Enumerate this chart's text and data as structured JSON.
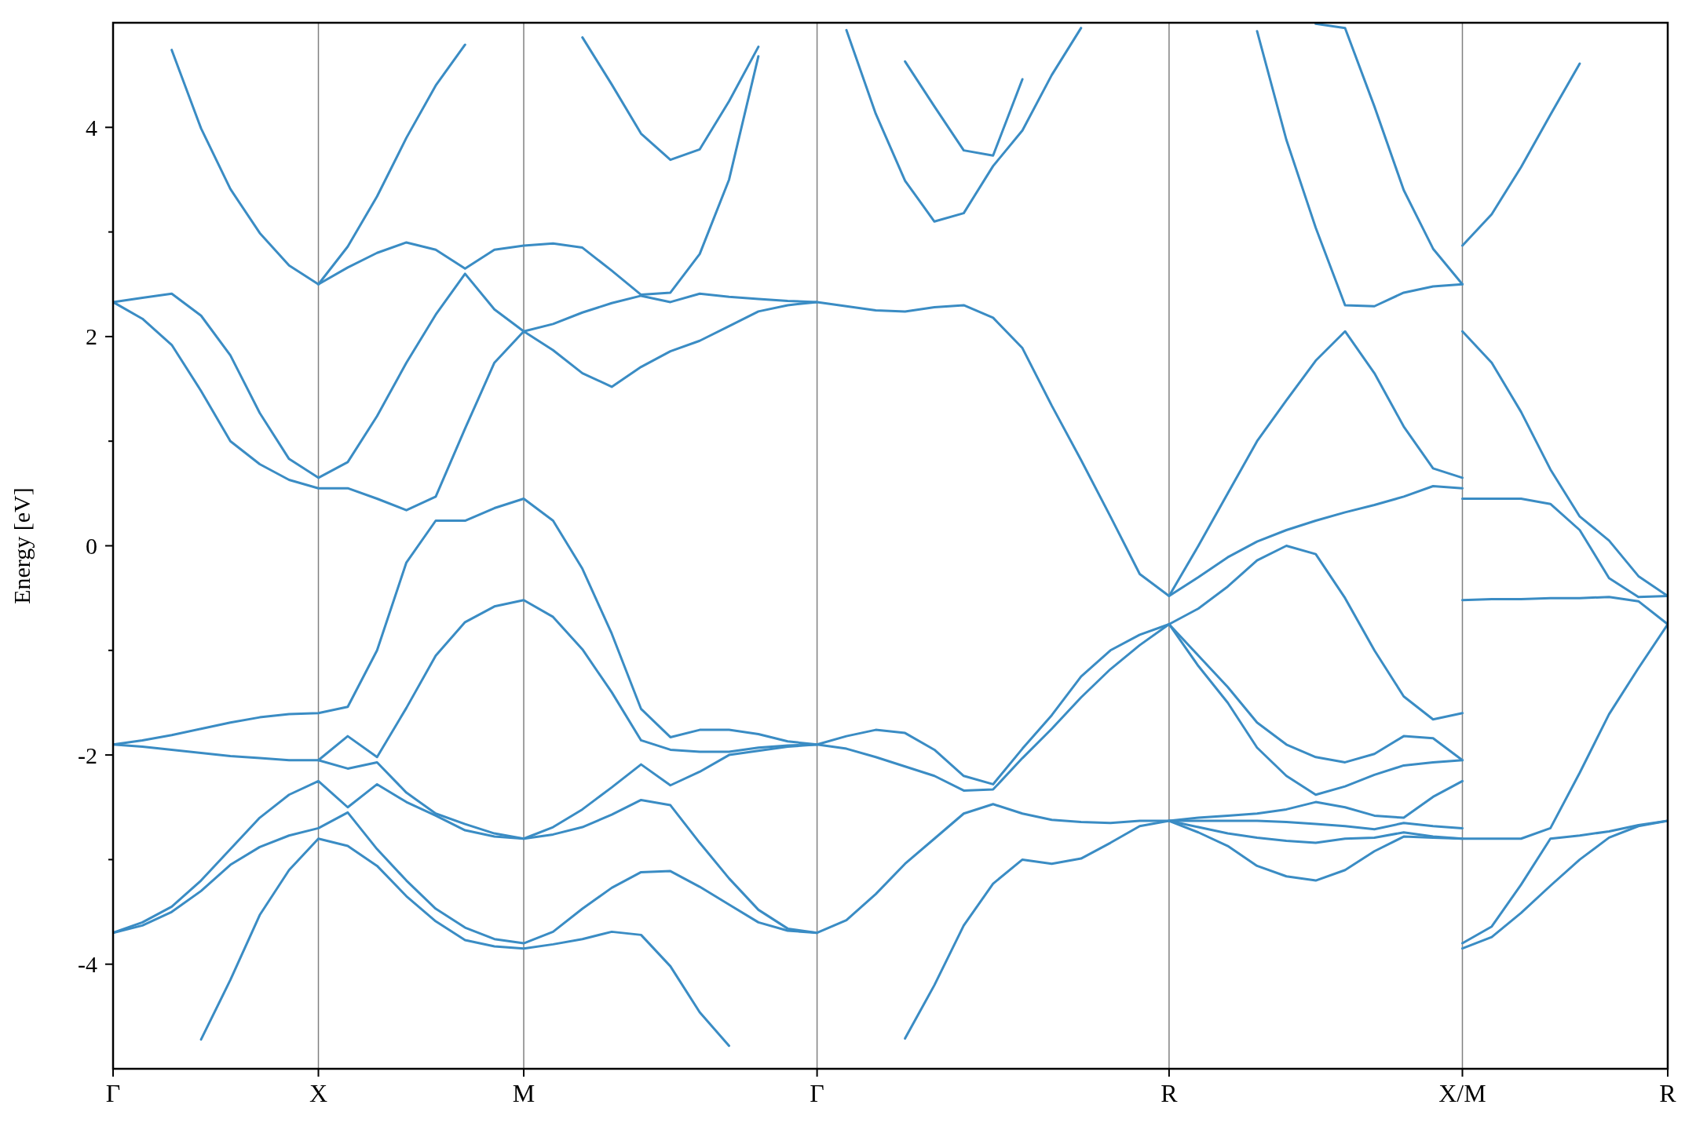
{
  "chart_data": {
    "type": "line",
    "ylabel": "Energy [eV]",
    "ylim": [
      -5,
      5
    ],
    "grid": "x",
    "categories": [
      "Γ",
      null,
      null,
      null,
      null,
      null,
      null,
      "X",
      null,
      null,
      null,
      null,
      null,
      null,
      "M",
      null,
      null,
      null,
      null,
      null,
      null,
      null,
      null,
      null,
      "Γ",
      null,
      null,
      null,
      null,
      null,
      null,
      null,
      null,
      null,
      null,
      null,
      "R",
      null,
      null,
      null,
      null,
      null,
      null,
      null,
      null,
      null,
      "X/M",
      null,
      null,
      null,
      null,
      null,
      null,
      "R"
    ],
    "yticks": [
      -4,
      {
        "value": -3,
        "label": null
      },
      -2,
      {
        "value": -1,
        "label": null
      },
      0,
      {
        "value": 1,
        "label": null
      },
      2,
      {
        "value": 3,
        "label": null
      },
      4
    ],
    "series": [
      {
        "color": "#3a8cc4",
        "values": [
          null,
          null,
          null,
          -4.72,
          -4.15,
          -3.53,
          -3.1,
          -2.8,
          -2.87,
          -3.06,
          -3.35,
          -3.59,
          -3.77,
          -3.83,
          -3.85,
          -3.81,
          -3.76,
          -3.69,
          -3.72,
          -4.02,
          -4.46,
          -4.78,
          null,
          null,
          null,
          null,
          null,
          -4.71,
          -4.2,
          -3.63,
          -3.23,
          -3.0,
          -3.04,
          -2.99,
          -2.84,
          -2.68,
          -2.63,
          -2.74,
          -2.87,
          -3.06,
          -3.16,
          -3.2,
          -3.1,
          -2.92,
          -2.78,
          -2.79,
          -2.8,
          -2.8,
          -2.8,
          -2.7,
          -2.17,
          -1.61,
          -1.17,
          -0.75
        ]
      },
      {
        "color": "#3a8cc4",
        "values": [
          -3.7,
          -3.63,
          -3.5,
          -3.3,
          -3.05,
          -2.88,
          -2.77,
          -2.7,
          -2.55,
          -2.9,
          -3.2,
          -3.47,
          -3.65,
          -3.76,
          -3.8,
          -3.69,
          -3.47,
          -3.27,
          -3.12,
          -3.11,
          -3.26,
          -3.43,
          -3.6,
          -3.68,
          -3.7,
          null,
          null,
          null,
          null,
          null,
          null,
          null,
          null,
          null,
          null,
          null,
          -2.63,
          -2.63,
          -2.63,
          -2.63,
          -2.64,
          -2.66,
          -2.68,
          -2.71,
          -2.65,
          -2.68,
          -2.7,
          null,
          null,
          null,
          null,
          null,
          null,
          null
        ]
      },
      {
        "color": "#3a8cc4",
        "values": [
          -3.7,
          -3.6,
          -3.45,
          -3.2,
          -2.9,
          -2.6,
          -2.38,
          -2.25,
          -2.5,
          -2.28,
          -2.45,
          -2.58,
          -2.72,
          -2.78,
          -2.8,
          -2.76,
          -2.69,
          -2.57,
          -2.43,
          -2.48,
          -2.84,
          -3.18,
          -3.48,
          -3.66,
          -3.7,
          -3.58,
          -3.33,
          -3.04,
          -2.8,
          -2.56,
          -2.47,
          -2.56,
          -2.62,
          -2.64,
          -2.65,
          -2.63,
          -2.63,
          -2.69,
          -2.75,
          -2.79,
          -2.82,
          -2.84,
          -2.8,
          -2.79,
          -2.74,
          -2.78,
          -2.8,
          null,
          null,
          null,
          null,
          null,
          null,
          null
        ]
      },
      {
        "color": "#3a8cc4",
        "values": [
          -1.9,
          -1.92,
          -1.95,
          -1.98,
          -2.01,
          -2.03,
          -2.05,
          -2.05,
          -2.13,
          -2.07,
          -2.36,
          -2.56,
          -2.66,
          -2.75,
          -2.8,
          -2.69,
          -2.52,
          -2.31,
          -2.09,
          -2.29,
          -2.16,
          -2.0,
          -1.96,
          -1.92,
          -1.9,
          -1.94,
          -2.02,
          -2.11,
          -2.2,
          -2.34,
          -2.33,
          -2.03,
          -1.75,
          -1.45,
          -1.18,
          -0.95,
          -0.75,
          -1.15,
          -1.5,
          -1.93,
          -2.2,
          -2.38,
          -2.3,
          -2.19,
          -2.1,
          -2.07,
          -2.05,
          null,
          null,
          null,
          null,
          null,
          null,
          null
        ]
      },
      {
        "color": "#3a8cc4",
        "values": [
          null,
          null,
          null,
          null,
          null,
          null,
          null,
          -2.05,
          -1.82,
          -2.02,
          -1.55,
          -1.05,
          -0.73,
          -0.58,
          -0.52,
          -0.68,
          -0.99,
          -1.4,
          -1.86,
          -1.95,
          -1.97,
          -1.97,
          -1.93,
          -1.91,
          -1.9,
          -1.82,
          -1.76,
          -1.79,
          -1.95,
          -2.2,
          -2.28,
          -1.94,
          -1.62,
          -1.25,
          -1.0,
          -0.85,
          -0.75,
          -1.05,
          -1.35,
          -1.69,
          -1.9,
          -2.02,
          -2.07,
          -1.99,
          -1.82,
          -1.84,
          -2.05,
          null,
          null,
          null,
          null,
          null,
          null,
          null
        ]
      },
      {
        "color": "#3a8cc4",
        "values": [
          -1.9,
          -1.86,
          -1.81,
          -1.75,
          -1.69,
          -1.64,
          -1.61,
          -1.6,
          -1.54,
          -1.0,
          -0.16,
          0.24,
          0.24,
          0.36,
          0.45,
          0.24,
          -0.22,
          -0.84,
          -1.56,
          -1.83,
          -1.76,
          -1.76,
          -1.8,
          -1.87,
          -1.9,
          null,
          null,
          null,
          null,
          null,
          null,
          null,
          null,
          null,
          null,
          null,
          -2.63,
          -2.6,
          -2.58,
          -2.56,
          -2.52,
          -2.45,
          -2.5,
          -2.58,
          -2.6,
          -2.4,
          -2.25,
          null,
          null,
          null,
          null,
          null,
          null,
          null
        ]
      },
      {
        "color": "#3a8cc4",
        "values": [
          2.33,
          2.17,
          1.92,
          1.48,
          1.0,
          0.78,
          0.63,
          0.55,
          0.55,
          0.45,
          0.34,
          0.47,
          1.12,
          1.75,
          2.05,
          1.87,
          1.65,
          1.52,
          1.71,
          1.86,
          1.96,
          2.1,
          2.24,
          2.3,
          2.33,
          2.29,
          2.25,
          2.24,
          2.28,
          2.3,
          2.18,
          1.89,
          1.34,
          0.82,
          0.28,
          -0.27,
          -0.48,
          -0.3,
          -0.11,
          0.04,
          0.15,
          0.24,
          0.32,
          0.39,
          0.47,
          0.57,
          0.55,
          null,
          null,
          null,
          null,
          null,
          null,
          null
        ]
      },
      {
        "color": "#3a8cc4",
        "values": [
          2.33,
          2.37,
          2.41,
          2.2,
          1.82,
          1.27,
          0.83,
          0.65,
          0.8,
          1.24,
          1.75,
          2.21,
          2.6,
          2.26,
          2.05,
          2.12,
          2.23,
          2.32,
          2.39,
          2.33,
          2.41,
          2.38,
          2.36,
          2.34,
          2.33,
          null,
          null,
          null,
          null,
          null,
          null,
          null,
          null,
          null,
          null,
          null,
          -0.75,
          -0.6,
          -0.39,
          -0.14,
          0.0,
          -0.08,
          -0.5,
          -1.0,
          -1.44,
          -1.66,
          -1.6,
          null,
          null,
          null,
          null,
          null,
          null,
          null
        ]
      },
      {
        "color": "#3a8cc4",
        "values": [
          null,
          null,
          4.74,
          3.99,
          3.41,
          2.99,
          2.68,
          2.5,
          2.66,
          2.8,
          2.9,
          2.83,
          2.65,
          2.83,
          2.87,
          2.89,
          2.85,
          2.63,
          2.4,
          2.42,
          2.79,
          3.5,
          4.68,
          null,
          null,
          4.93,
          4.13,
          3.49,
          3.1,
          3.18,
          3.63,
          3.97,
          4.5,
          4.95,
          null,
          null,
          null,
          null,
          null,
          4.92,
          3.88,
          3.04,
          2.3,
          2.29,
          2.42,
          2.48,
          2.5,
          null,
          null,
          null,
          null,
          null,
          null,
          null
        ]
      },
      {
        "color": "#3a8cc4",
        "values": [
          null,
          null,
          null,
          null,
          null,
          null,
          null,
          2.5,
          2.86,
          3.34,
          3.9,
          4.4,
          4.79,
          null,
          null,
          null,
          4.86,
          4.41,
          3.94,
          3.69,
          3.79,
          4.25,
          4.77,
          null,
          null,
          null,
          null,
          4.63,
          4.2,
          3.78,
          3.73,
          4.46,
          null,
          null,
          null,
          null,
          null,
          null,
          null,
          null,
          null,
          4.99,
          4.95,
          4.2,
          3.4,
          2.84,
          2.5,
          null,
          null,
          null,
          null,
          null,
          null,
          null
        ]
      },
      {
        "color": "#3a8cc4",
        "values": [
          null,
          null,
          null,
          null,
          null,
          null,
          null,
          null,
          null,
          null,
          null,
          null,
          null,
          null,
          null,
          null,
          null,
          null,
          null,
          null,
          null,
          null,
          null,
          null,
          null,
          null,
          null,
          null,
          null,
          null,
          null,
          null,
          null,
          null,
          null,
          null,
          -0.48,
          0.0,
          0.5,
          1.0,
          1.39,
          1.77,
          2.05,
          1.65,
          1.14,
          0.74,
          0.65,
          null,
          null,
          null,
          null,
          null,
          null,
          null
        ]
      },
      {
        "color": "#3a8cc4",
        "values": [
          null,
          null,
          null,
          null,
          null,
          null,
          null,
          null,
          null,
          null,
          null,
          null,
          null,
          null,
          null,
          null,
          null,
          null,
          null,
          null,
          null,
          null,
          null,
          null,
          null,
          null,
          null,
          null,
          null,
          null,
          null,
          null,
          null,
          null,
          null,
          null,
          null,
          null,
          null,
          null,
          null,
          null,
          null,
          null,
          null,
          null,
          -3.85,
          -3.74,
          -3.51,
          -3.25,
          -3.0,
          -2.79,
          -2.68,
          -2.63
        ]
      },
      {
        "color": "#3a8cc4",
        "values": [
          null,
          null,
          null,
          null,
          null,
          null,
          null,
          null,
          null,
          null,
          null,
          null,
          null,
          null,
          null,
          null,
          null,
          null,
          null,
          null,
          null,
          null,
          null,
          null,
          null,
          null,
          null,
          null,
          null,
          null,
          null,
          null,
          null,
          null,
          null,
          null,
          null,
          null,
          null,
          null,
          null,
          null,
          null,
          null,
          null,
          null,
          -3.8,
          -3.64,
          -3.24,
          -2.8,
          -2.77,
          -2.73,
          -2.67,
          -2.63
        ]
      },
      {
        "color": "#3a8cc4",
        "values": [
          null,
          null,
          null,
          null,
          null,
          null,
          null,
          null,
          null,
          null,
          null,
          null,
          null,
          null,
          null,
          null,
          null,
          null,
          null,
          null,
          null,
          null,
          null,
          null,
          null,
          null,
          null,
          null,
          null,
          null,
          null,
          null,
          null,
          null,
          null,
          null,
          null,
          null,
          null,
          null,
          null,
          null,
          null,
          null,
          null,
          null,
          -0.52,
          -0.51,
          -0.51,
          -0.5,
          -0.5,
          -0.49,
          -0.53,
          -0.75
        ]
      },
      {
        "color": "#3a8cc4",
        "values": [
          null,
          null,
          null,
          null,
          null,
          null,
          null,
          null,
          null,
          null,
          null,
          null,
          null,
          null,
          null,
          null,
          null,
          null,
          null,
          null,
          null,
          null,
          null,
          null,
          null,
          null,
          null,
          null,
          null,
          null,
          null,
          null,
          null,
          null,
          null,
          null,
          null,
          null,
          null,
          null,
          null,
          null,
          null,
          null,
          null,
          null,
          0.45,
          0.45,
          0.45,
          0.4,
          0.15,
          -0.31,
          -0.49,
          -0.48
        ]
      },
      {
        "color": "#3a8cc4",
        "values": [
          null,
          null,
          null,
          null,
          null,
          null,
          null,
          null,
          null,
          null,
          null,
          null,
          null,
          null,
          null,
          null,
          null,
          null,
          null,
          null,
          null,
          null,
          null,
          null,
          null,
          null,
          null,
          null,
          null,
          null,
          null,
          null,
          null,
          null,
          null,
          null,
          null,
          null,
          null,
          null,
          null,
          null,
          null,
          null,
          null,
          null,
          2.05,
          1.75,
          1.28,
          0.73,
          0.28,
          0.05,
          -0.29,
          -0.48
        ]
      },
      {
        "color": "#3a8cc4",
        "values": [
          null,
          null,
          null,
          null,
          null,
          null,
          null,
          null,
          null,
          null,
          null,
          null,
          null,
          null,
          null,
          null,
          null,
          null,
          null,
          null,
          null,
          null,
          null,
          null,
          null,
          null,
          null,
          null,
          null,
          null,
          null,
          null,
          null,
          null,
          null,
          null,
          null,
          null,
          null,
          null,
          null,
          null,
          null,
          null,
          null,
          null,
          2.87,
          3.17,
          3.62,
          4.12,
          4.61,
          null,
          null,
          null
        ]
      }
    ]
  }
}
